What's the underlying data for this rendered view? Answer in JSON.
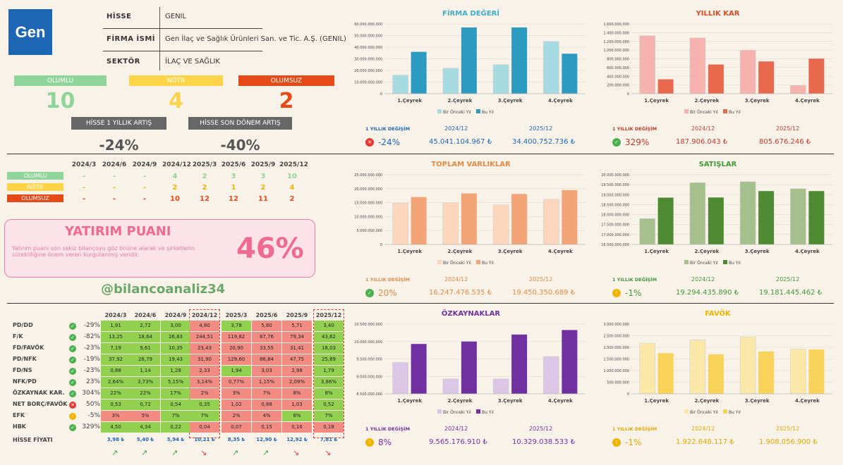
{
  "company": {
    "logo_text": "Gen",
    "hisse_label": "HİSSE",
    "hisse": "GENIL",
    "firma_label": "FİRMA İSMİ",
    "firma": "Gen İlaç ve Sağlık Ürünleri San. ve Tic. A.Ş. (GENIL)",
    "sektor_label": "SEKTÖR",
    "sektor": "İLAÇ VE SAĞLIK"
  },
  "summary": {
    "olumlu_label": "OLUMLU",
    "notr_label": "NÖTR",
    "olumsuz_label": "OLUMSUZ",
    "olumlu": "10",
    "notr": "4",
    "olumsuz": "2",
    "yillik_label": "HİSSE 1 YILLIK ARTIŞ",
    "yillik": "-24%",
    "donem_label": "HİSSE SON DÖNEM ARTIŞ",
    "donem": "-40%"
  },
  "periods": [
    "2024/3",
    "2024/6",
    "2024/9",
    "2024/12",
    "2025/3",
    "2025/6",
    "2025/9",
    "2025/12"
  ],
  "counts": [
    {
      "label": "OLUMLU",
      "vals": [
        "-",
        "-",
        "-",
        "4",
        "2",
        "3",
        "3",
        "10"
      ]
    },
    {
      "label": "NÖTR",
      "vals": [
        "-",
        "-",
        "-",
        "2",
        "2",
        "1",
        "2",
        "4"
      ]
    },
    {
      "label": "OLUMSUZ",
      "vals": [
        "-",
        "-",
        "-",
        "10",
        "12",
        "12",
        "11",
        "2"
      ]
    }
  ],
  "yatirim": {
    "title": "YATIRIM PUANI",
    "desc": "Yatırım puanı son sekiz bilançoyu göz önüne alarak ve şirketlerin sürekliliğine önem veren kurgulanmış veridir.",
    "value": "46%"
  },
  "handle": "@bilancoanaliz34",
  "ratios": [
    {
      "name": "PD/DD",
      "st": "ok",
      "chg": "-29%",
      "v": [
        "1,91",
        "2,72",
        "3,00",
        "4,80",
        "3,78",
        "5,80",
        "5,71",
        "3,40"
      ],
      "c": [
        "g",
        "g",
        "g",
        "r",
        "g",
        "r",
        "r",
        "g"
      ]
    },
    {
      "name": "F/K",
      "st": "ok",
      "chg": "-82%",
      "v": [
        "13,25",
        "18,64",
        "26,83",
        "244,51",
        "119,82",
        "87,76",
        "79,34",
        "43,62"
      ],
      "c": [
        "g",
        "g",
        "g",
        "r",
        "r",
        "r",
        "r",
        "g"
      ]
    },
    {
      "name": "FD/FAVÖK",
      "st": "ok",
      "chg": "-23%",
      "v": [
        "7,19",
        "9,61",
        "10,35",
        "23,43",
        "20,90",
        "33,55",
        "31,41",
        "18,03"
      ],
      "c": [
        "g",
        "g",
        "g",
        "r",
        "r",
        "r",
        "r",
        "g"
      ]
    },
    {
      "name": "PD/NFK",
      "st": "ok",
      "chg": "-19%",
      "v": [
        "37,92",
        "26,79",
        "19,43",
        "31,90",
        "129,60",
        "86,84",
        "47,75",
        "25,89"
      ],
      "c": [
        "g",
        "g",
        "g",
        "r",
        "r",
        "r",
        "r",
        "g"
      ]
    },
    {
      "name": "FD/NS",
      "st": "ok",
      "chg": "-23%",
      "v": [
        "0,88",
        "1,14",
        "1,28",
        "2,33",
        "1,94",
        "3,03",
        "2,98",
        "1,79"
      ],
      "c": [
        "g",
        "g",
        "g",
        "r",
        "g",
        "r",
        "r",
        "g"
      ]
    },
    {
      "name": "NFK/PD",
      "st": "ok",
      "chg": "23%",
      "v": [
        "2,64%",
        "3,73%",
        "5,15%",
        "3,14%",
        "0,77%",
        "1,15%",
        "2,09%",
        "3,86%"
      ],
      "c": [
        "g",
        "g",
        "g",
        "r",
        "r",
        "r",
        "r",
        "g"
      ]
    },
    {
      "name": "ÖZKAYNAK KAR.",
      "st": "ok",
      "chg": "304%",
      "v": [
        "22%",
        "22%",
        "17%",
        "2%",
        "3%",
        "7%",
        "8%",
        "8%"
      ],
      "c": [
        "g",
        "g",
        "g",
        "r",
        "r",
        "r",
        "r",
        "g"
      ]
    },
    {
      "name": "NET BORÇ/FAVÖK",
      "st": "bad",
      "chg": "50%",
      "v": [
        "0,53",
        "0,72",
        "0,54",
        "0,35",
        "1,02",
        "0,88",
        "1,03",
        "0,52"
      ],
      "c": [
        "g",
        "g",
        "g",
        "g",
        "r",
        "r",
        "r",
        "g"
      ]
    },
    {
      "name": "EFK",
      "st": "mid",
      "chg": "-5%",
      "v": [
        "3%",
        "5%",
        "7%",
        "7%",
        "2%",
        "4%",
        "6%",
        "7%"
      ],
      "c": [
        "r",
        "r",
        "g",
        "g",
        "r",
        "r",
        "g",
        "g"
      ]
    },
    {
      "name": "HBK",
      "st": "ok",
      "chg": "329%",
      "v": [
        "4,50",
        "4,34",
        "0,22",
        "0,04",
        "0,07",
        "0,15",
        "0,16",
        "0,18"
      ],
      "c": [
        "g",
        "g",
        "g",
        "r",
        "r",
        "r",
        "r",
        "r"
      ]
    }
  ],
  "price_label": "HİSSE FİYATI",
  "prices": [
    "3,98 ₺",
    "5,40 ₺",
    "5,94 ₺",
    "10,21 ₺",
    "8,35 ₺",
    "12,90 ₺",
    "12,92 ₺",
    "7,81 ₺"
  ],
  "price_trend": [
    "up",
    "up",
    "up",
    "down",
    "up",
    "up",
    "down",
    "down"
  ],
  "chart_data": [
    {
      "type": "bar",
      "title": "FİRMA DEĞERİ",
      "categories": [
        "1.Çeyrek",
        "2.Çeyrek",
        "3.Çeyrek",
        "4.Çeyrek"
      ],
      "series": [
        {
          "name": "Bir Önceki Yıl",
          "values": [
            16000000000,
            22000000000,
            25000000000,
            45000000000
          ]
        },
        {
          "name": "Bu Yıl",
          "values": [
            36000000000,
            57000000000,
            57000000000,
            34400000000
          ]
        }
      ],
      "ylim": [
        0,
        60000000000
      ],
      "ticks": [
        "0",
        "10.000.000.000",
        "20.000.000.000",
        "30.000.000.000",
        "40.000.000.000",
        "50.000.000.000",
        "60.000.000.000"
      ],
      "colors": [
        "#a6dbe1",
        "#2d9bbf"
      ],
      "change_label": "1 YILLIK DEĞİŞİM",
      "change": "-24%",
      "change_st": "bad",
      "p1": "2024/12",
      "p2": "2025/12",
      "v1": "45.041.104.967 ₺",
      "v2": "34.400.752.736 ₺",
      "tcolor": "#3bb0c9",
      "vcolor": "#1d66b4"
    },
    {
      "type": "bar",
      "title": "YILLIK KAR",
      "categories": [
        "1.Çeyrek",
        "2.Çeyrek",
        "3.Çeyrek",
        "4.Çeyrek"
      ],
      "series": [
        {
          "name": "Bir Önceki Yıl",
          "values": [
            1330000000,
            1280000000,
            1000000000,
            190000000
          ]
        },
        {
          "name": "Bu Yıl",
          "values": [
            330000000,
            670000000,
            740000000,
            805000000
          ]
        }
      ],
      "ylim": [
        0,
        1600000000
      ],
      "ticks": [
        "0",
        "200.000.000",
        "400.000.000",
        "600.000.000",
        "800.000.000",
        "1.000.000.000",
        "1.200.000.000",
        "1.400.000.000",
        "1.600.000.000"
      ],
      "colors": [
        "#f6b3ae",
        "#e9694f"
      ],
      "change_label": "1 YILLIK DEĞİŞİM",
      "change": "329%",
      "change_st": "ok",
      "p1": "2024/12",
      "p2": "2025/12",
      "v1": "187.906.043 ₺",
      "v2": "805.676.246 ₺",
      "tcolor": "#e04a23",
      "vcolor": "#c1392b"
    },
    {
      "type": "bar",
      "title": "TOPLAM VARLIKLAR",
      "categories": [
        "1.Çeyrek",
        "2.Çeyrek",
        "3.Çeyrek",
        "4.Çeyrek"
      ],
      "series": [
        {
          "name": "Bir Önceki Yıl",
          "values": [
            14800000000,
            14900000000,
            14200000000,
            16200000000
          ]
        },
        {
          "name": "Bu Yıl",
          "values": [
            17000000000,
            18300000000,
            18100000000,
            19500000000
          ]
        }
      ],
      "ylim": [
        0,
        25000000000
      ],
      "ticks": [
        "0",
        "5.000.000.000",
        "10.000.000.000",
        "15.000.000.000",
        "20.000.000.000",
        "25.000.000.000"
      ],
      "colors": [
        "#fbd6bd",
        "#f3a578"
      ],
      "change_label": "1 YILLIK DEĞİŞİM",
      "change": "20%",
      "change_st": "ok",
      "p1": "2024/12",
      "p2": "2025/12",
      "v1": "16.247.476.535 ₺",
      "v2": "19.450.350.689 ₺",
      "tcolor": "#e58a43",
      "vcolor": "#e58a43"
    },
    {
      "type": "bar",
      "title": "SATIŞLAR",
      "categories": [
        "1.Çeyrek",
        "2.Çeyrek",
        "3.Çeyrek",
        "4.Çeyrek"
      ],
      "series": [
        {
          "name": "Bir Önceki Yıl",
          "values": [
            17800000000,
            19600000000,
            19650000000,
            19300000000
          ]
        },
        {
          "name": "Bu Yıl",
          "values": [
            18850000000,
            18860000000,
            19180000000,
            19180000000
          ]
        }
      ],
      "ylim": [
        16500000000,
        20000000000
      ],
      "ticks": [
        "16.500.000.000",
        "17.000.000.000",
        "17.500.000.000",
        "18.000.000.000",
        "18.500.000.000",
        "19.000.000.000",
        "19.500.000.000",
        "20.000.000.000"
      ],
      "colors": [
        "#a5c08c",
        "#4e8a32"
      ],
      "change_label": "1 YILLIK DEĞİŞİM",
      "change": "-1%",
      "change_st": "mid",
      "p1": "2024/12",
      "p2": "2025/12",
      "v1": "19.294.435.890 ₺",
      "v2": "19.181.445.462 ₺",
      "tcolor": "#3f9a3a",
      "vcolor": "#3f9a3a"
    },
    {
      "type": "bar",
      "title": "ÖZKAYNAKLAR",
      "categories": [
        "1.Çeyrek",
        "2.Çeyrek",
        "3.Çeyrek",
        "4.Çeyrek"
      ],
      "series": [
        {
          "name": "Bir Önceki Yıl",
          "values": [
            9400000000,
            8930000000,
            8930000000,
            9570000000
          ]
        },
        {
          "name": "Bu Yıl",
          "values": [
            9930000000,
            10000000000,
            10200000000,
            10330000000
          ]
        }
      ],
      "ylim": [
        8500000000,
        10500000000
      ],
      "ticks": [
        "8.500.000.000",
        "9.000.000.000",
        "9.500.000.000",
        "10.000.000.000",
        "10.500.000.000"
      ],
      "colors": [
        "#dcc6e6",
        "#7030a0"
      ],
      "change_label": "1 YILLIK DEĞİŞİM",
      "change": "8%",
      "change_st": "mid",
      "p1": "2024/12",
      "p2": "2025/12",
      "v1": "9.565.176.910 ₺",
      "v2": "10.329.038.533 ₺",
      "tcolor": "#7030a0",
      "vcolor": "#7030a0"
    },
    {
      "type": "bar",
      "title": "FAVÖK",
      "categories": [
        "1.Çeyrek",
        "2.Çeyrek",
        "3.Çeyrek",
        "4.Çeyrek"
      ],
      "series": [
        {
          "name": "Bir Önceki Yıl",
          "values": [
            2180000000,
            2320000000,
            2450000000,
            1920000000
          ]
        },
        {
          "name": "Bu Yıl",
          "values": [
            1750000000,
            1700000000,
            1820000000,
            1910000000
          ]
        }
      ],
      "ylim": [
        0,
        3000000000
      ],
      "ticks": [
        "0",
        "500.000.000",
        "1.000.000.000",
        "1.500.000.000",
        "2.000.000.000",
        "2.500.000.000",
        "3.000.000.000"
      ],
      "colors": [
        "#fbe8a8",
        "#f9d25a"
      ],
      "change_label": "1 YILLIK DEĞİŞİM",
      "change": "-1%",
      "change_st": "mid",
      "p1": "2024/12",
      "p2": "2025/12",
      "v1": "1.922.648.117 ₺",
      "v2": "1.908.056.900 ₺",
      "tcolor": "#f0b400",
      "vcolor": "#e0a800"
    }
  ]
}
